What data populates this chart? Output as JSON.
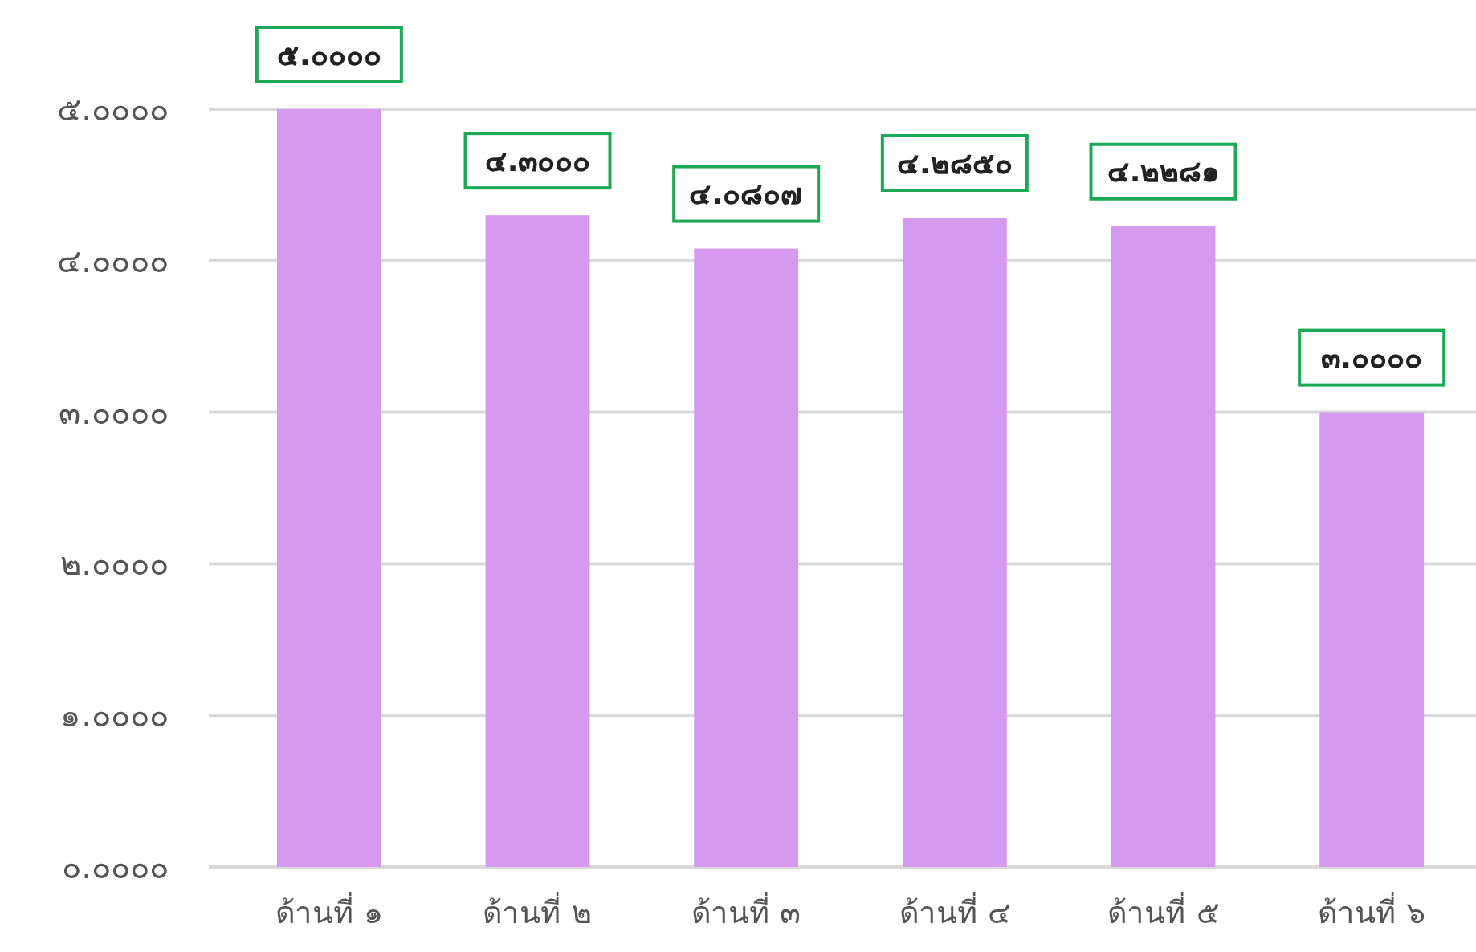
{
  "chart_data": {
    "type": "bar",
    "categories": [
      "ด้านที่ ๑",
      "ด้านที่ ๒",
      "ด้านที่ ๓",
      "ด้านที่ ๔",
      "ด้านที่ ๕",
      "ด้านที่ ๖"
    ],
    "values": [
      5.0,
      4.3,
      4.0807,
      4.285,
      4.2281,
      3.0
    ],
    "value_labels": [
      "๕.๐๐๐๐",
      "๔.๓๐๐๐",
      "๔.๐๘๐๗",
      "๔.๒๘๕๐",
      "๔.๒๒๘๑",
      "๓.๐๐๐๐"
    ],
    "color": "#d59af0",
    "ylim": [
      0,
      5
    ],
    "yticks": [
      {
        "value": 0,
        "label": "๐.๐๐๐๐"
      },
      {
        "value": 1,
        "label": "๑.๐๐๐๐"
      },
      {
        "value": 2,
        "label": "๒.๐๐๐๐"
      },
      {
        "value": 3,
        "label": "๓.๐๐๐๐"
      },
      {
        "value": 4,
        "label": "๔.๐๐๐๐"
      },
      {
        "value": 5,
        "label": "๕.๐๐๐๐"
      }
    ],
    "grid": true
  }
}
